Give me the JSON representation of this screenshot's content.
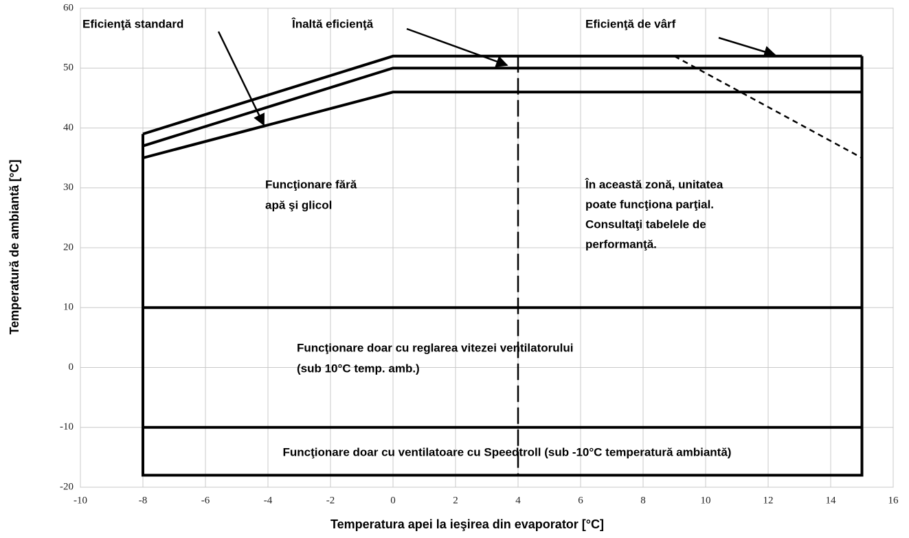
{
  "chart_data": {
    "type": "line",
    "xlabel": "Temperatura apei la ieşirea din evaporator [°C]",
    "ylabel": "Temperatură de ambiantă  [°C]",
    "xlim": [
      -10,
      16
    ],
    "xticks": [
      -10,
      -8,
      -6,
      -4,
      -2,
      0,
      2,
      4,
      6,
      8,
      10,
      12,
      14,
      16
    ],
    "ylim": [
      -20,
      60
    ],
    "yticks": [
      -20,
      -10,
      0,
      10,
      20,
      30,
      40,
      50,
      60
    ],
    "grid": true,
    "series": [
      {
        "color": "#000000",
        "dash": "solid",
        "x": [
          -8,
          0,
          15
        ],
        "values": [
          39,
          52,
          52
        ]
      },
      {
        "color": "#000000",
        "dash": "solid",
        "x": [
          -8,
          0,
          15
        ],
        "values": [
          37,
          50,
          50
        ]
      },
      {
        "color": "#000000",
        "dash": "solid",
        "x": [
          -8,
          0,
          15
        ],
        "values": [
          35,
          46,
          46
        ]
      },
      {
        "color": "#000000",
        "dash": "solid",
        "x": [
          -8,
          -8,
          15,
          15
        ],
        "values": [
          39,
          -18,
          -18,
          52
        ]
      },
      {
        "color": "#000000",
        "dash": "solid",
        "x": [
          -8,
          15
        ],
        "values": [
          10,
          10
        ]
      },
      {
        "color": "#000000",
        "dash": "solid",
        "x": [
          -8,
          15
        ],
        "values": [
          -10,
          -10
        ]
      },
      {
        "color": "#000000",
        "dash": "long",
        "x": [
          4,
          4
        ],
        "values": [
          52,
          -18
        ]
      },
      {
        "color": "#000000",
        "dash": "short",
        "x": [
          9,
          15
        ],
        "values": [
          52,
          35
        ]
      }
    ],
    "annotations": [
      {
        "lines": [
          "Eficienţă standard"
        ]
      },
      {
        "lines": [
          "Înaltă eficienţă"
        ]
      },
      {
        "lines": [
          "Eficienţă de vârf"
        ]
      },
      {
        "lines": [
          "Funcţionare fără",
          "apă şi glicol"
        ]
      },
      {
        "lines": [
          "În această zonă, unitatea",
          "poate funcţiona parţial.",
          "Consultaţi tabelele de",
          "performanţă."
        ]
      },
      {
        "lines": [
          "Funcţionare doar cu reglarea vitezei ventilatorului",
          "(sub 10°C temp. amb.)"
        ]
      },
      {
        "lines": [
          "Funcţionare doar cu ventilatoare cu Speedtroll (sub -10°C temperatură ambiantă)"
        ]
      }
    ]
  }
}
